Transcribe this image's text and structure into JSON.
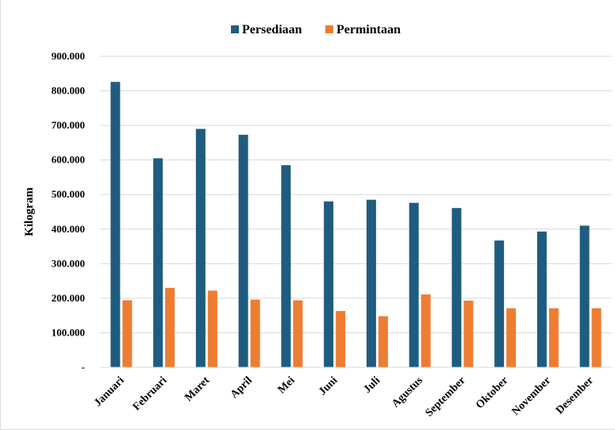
{
  "chart_data": {
    "type": "bar",
    "title": "",
    "xlabel": "",
    "ylabel": "Kilogram",
    "ylim": [
      0,
      900000
    ],
    "y_ticks": [
      0,
      100000,
      200000,
      300000,
      400000,
      500000,
      600000,
      700000,
      800000,
      900000
    ],
    "y_tick_labels": [
      "-",
      "100.000",
      "200.000",
      "300.000",
      "400.000",
      "500.000",
      "600.000",
      "700.000",
      "800.000",
      "900.000"
    ],
    "grid": true,
    "legend_position": "top-center",
    "categories": [
      "Januari",
      "Februari",
      "Maret",
      "April",
      "Mei",
      "Juni",
      "Juli",
      "Agustus",
      "September",
      "Oktober",
      "November",
      "Desember"
    ],
    "series": [
      {
        "name": "Persediaan",
        "color": "#1f5c7f",
        "values": [
          826000,
          605000,
          690000,
          673000,
          585000,
          480000,
          485000,
          476000,
          461000,
          367000,
          393000,
          410000
        ]
      },
      {
        "name": "Permintaan",
        "color": "#ed7d31",
        "values": [
          194000,
          230000,
          222000,
          196000,
          194000,
          163000,
          148000,
          211000,
          193000,
          171000,
          171000,
          171000
        ]
      }
    ]
  }
}
